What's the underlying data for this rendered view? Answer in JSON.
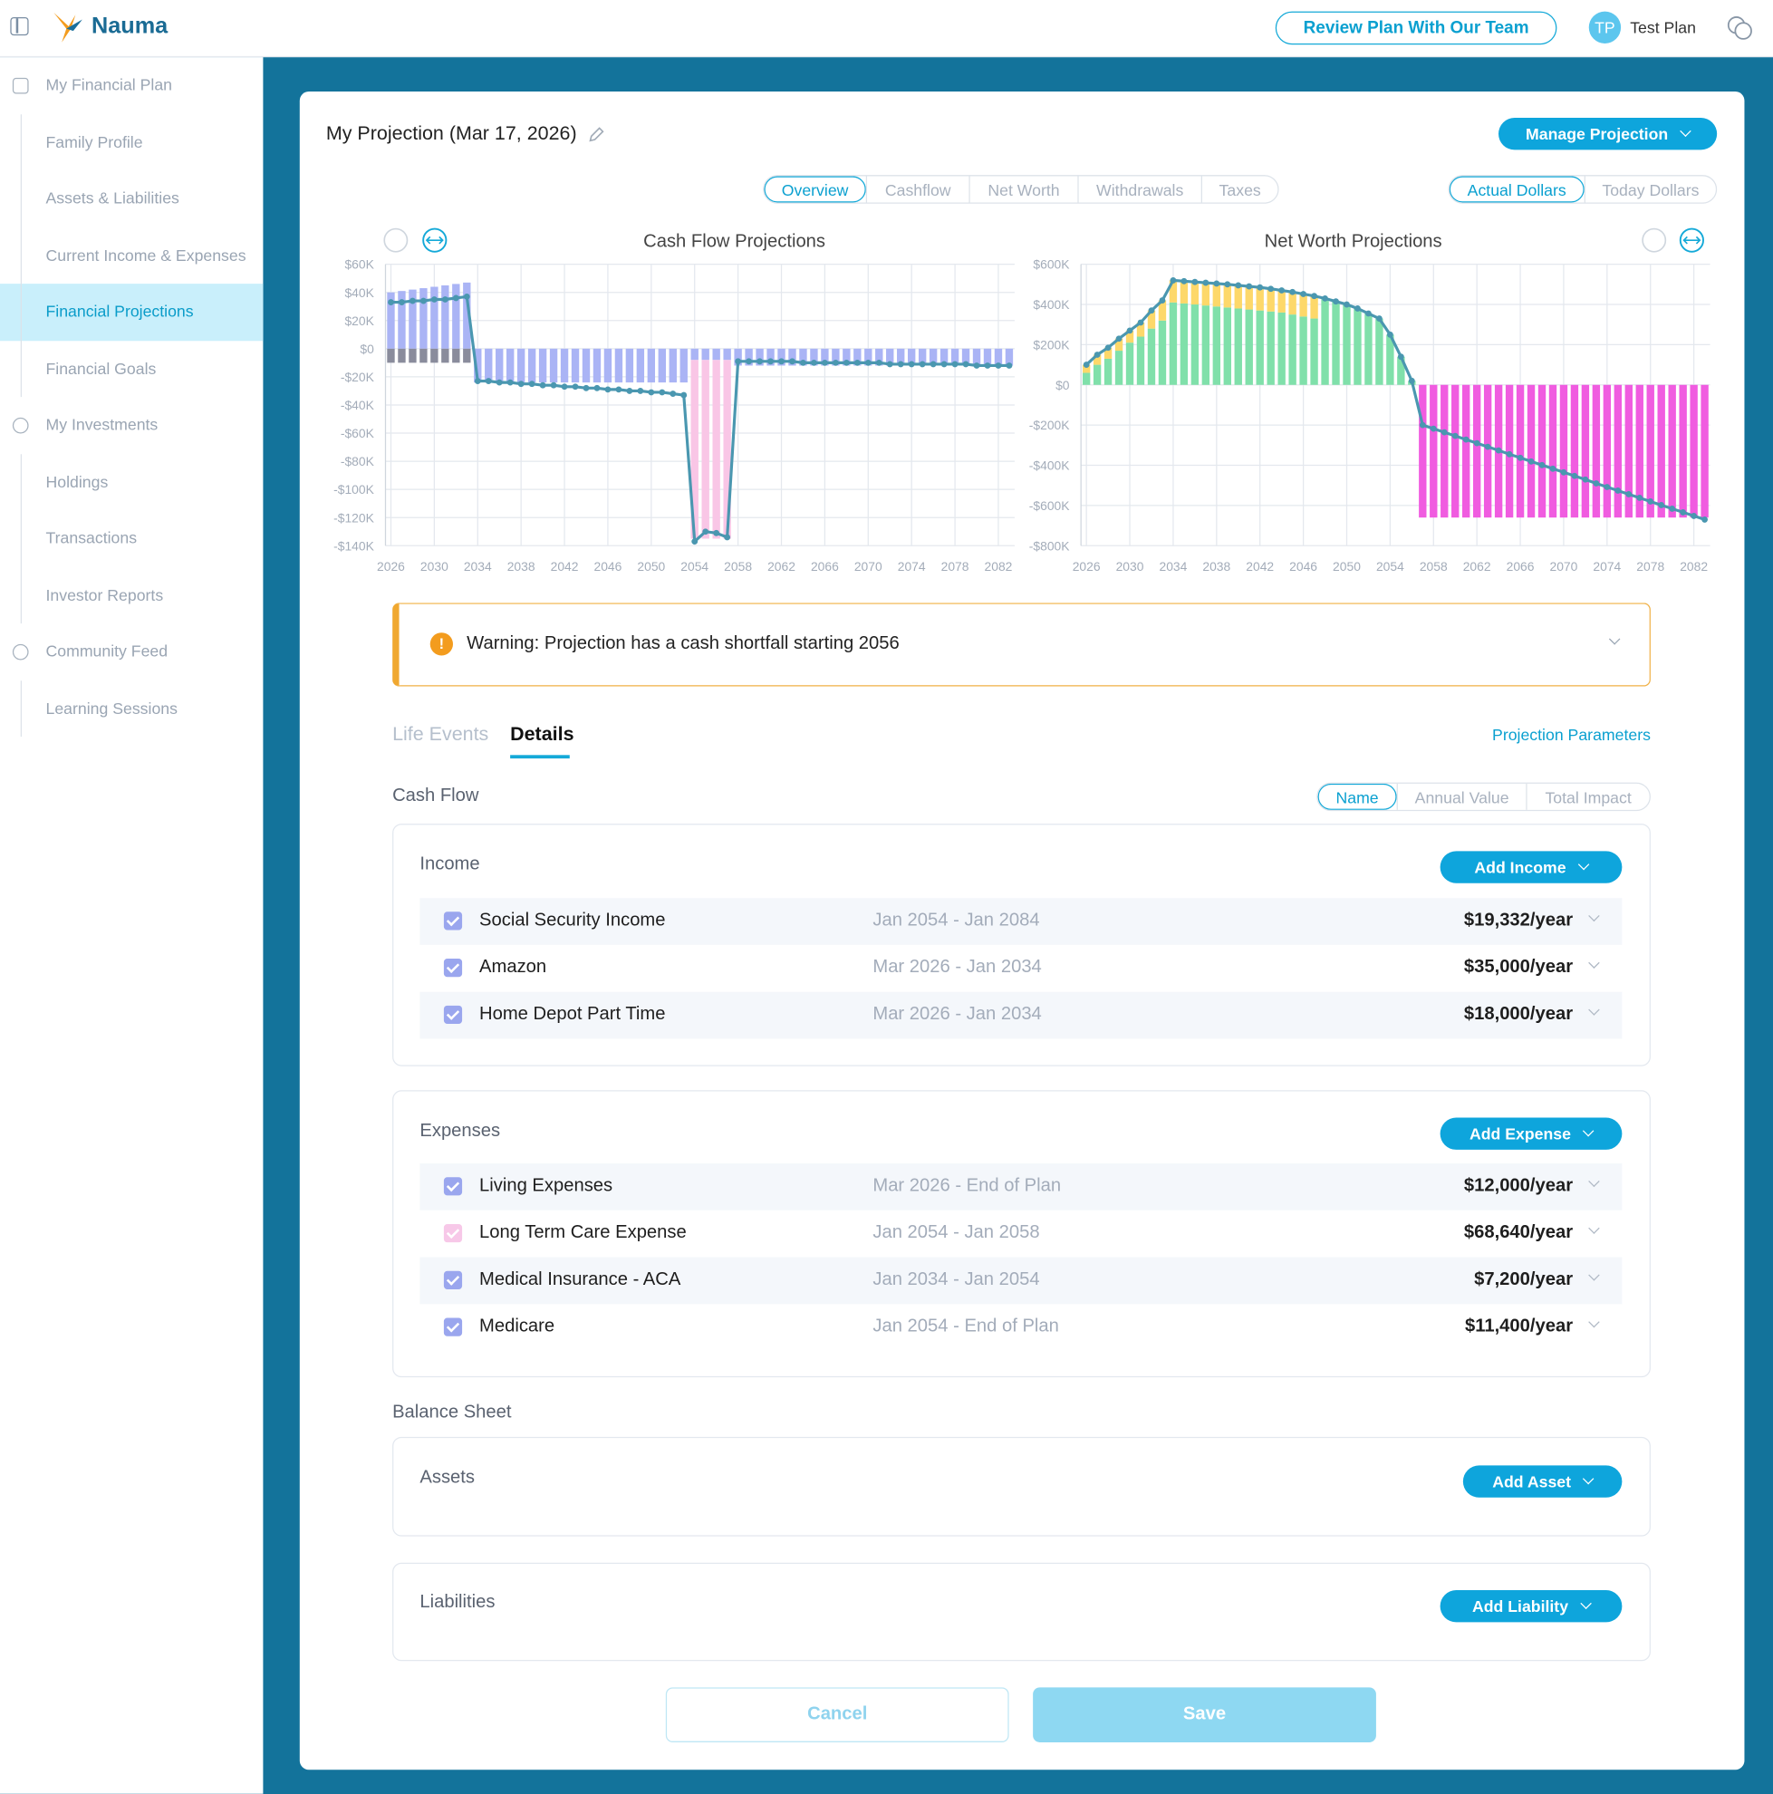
{
  "header": {
    "logo": "Nauma",
    "review_button": "Review Plan With Our Team",
    "avatar": "TP",
    "user": "Test Plan"
  },
  "sidebar": [
    {
      "label": "My Financial Plan",
      "items": [
        "Family Profile",
        "Assets & Liabilities",
        "Current Income & Expenses",
        "Financial Projections",
        "Financial Goals"
      ]
    },
    {
      "label": "My Investments",
      "items": [
        "Holdings",
        "Transactions",
        "Investor Reports"
      ]
    },
    {
      "label": "Community Feed",
      "items": [
        "Learning Sessions"
      ]
    }
  ],
  "projection": {
    "title": "My Projection (Mar 17, 2026)",
    "manage_button": "Manage Projection",
    "views": [
      "Overview",
      "Cashflow",
      "Net Worth",
      "Withdrawals",
      "Taxes"
    ],
    "dollars": [
      "Actual Dollars",
      "Today Dollars"
    ]
  },
  "chart_data": [
    {
      "type": "bar",
      "title": "Cash Flow Projections",
      "stacked": true,
      "grid": true,
      "x": [
        2026,
        2027,
        2028,
        2029,
        2030,
        2031,
        2032,
        2033,
        2034,
        2035,
        2036,
        2037,
        2038,
        2039,
        2040,
        2041,
        2042,
        2043,
        2044,
        2045,
        2046,
        2047,
        2048,
        2049,
        2050,
        2051,
        2052,
        2053,
        2054,
        2055,
        2056,
        2057,
        2058,
        2059,
        2060,
        2061,
        2062,
        2063,
        2064,
        2065,
        2066,
        2067,
        2068,
        2069,
        2070,
        2071,
        2072,
        2073,
        2074,
        2075,
        2076,
        2077,
        2078,
        2079,
        2080,
        2081,
        2082,
        2083
      ],
      "xlim": [
        2025.5,
        2083.5
      ],
      "xticks": [
        2026,
        2030,
        2034,
        2038,
        2042,
        2046,
        2050,
        2054,
        2058,
        2062,
        2066,
        2070,
        2074,
        2078,
        2082
      ],
      "ylim": [
        -140,
        60
      ],
      "yticks": [
        {
          "value": 60,
          "label": "$60K"
        },
        {
          "value": 40,
          "label": "$40K"
        },
        {
          "value": 20,
          "label": "$20K"
        },
        {
          "value": 0,
          "label": "$0"
        },
        {
          "value": -20,
          "label": "-$20K"
        },
        {
          "value": -40,
          "label": "-$40K"
        },
        {
          "value": -60,
          "label": "-$60K"
        },
        {
          "value": -80,
          "label": "-$80K"
        },
        {
          "value": -100,
          "label": "-$100K"
        },
        {
          "value": -120,
          "label": "-$120K"
        },
        {
          "value": -140,
          "label": "-$140K"
        }
      ],
      "series": [
        {
          "color": "#aab4f5",
          "values": [
            40,
            41,
            42,
            43,
            44,
            45,
            46,
            47,
            -24,
            -24,
            -24,
            -24,
            -24,
            -24,
            -24,
            -24,
            -24,
            -24,
            -24,
            -24,
            -24,
            -24,
            -24,
            -24,
            -24,
            -24,
            -24,
            -24,
            -8,
            -8,
            -8,
            -8,
            -12,
            -12,
            -12,
            -12,
            -12,
            -12,
            -12,
            -12,
            -12,
            -12,
            -12,
            -12,
            -12,
            -12,
            -12,
            -12,
            -12,
            -12,
            -12,
            -12,
            -12,
            -12,
            -12,
            -12,
            -12,
            -12
          ]
        },
        {
          "color": "#8a8c9c",
          "values": [
            -10,
            -10,
            -10,
            -10,
            -10,
            -10,
            -10,
            -10,
            null,
            null,
            null,
            null,
            null,
            null,
            null,
            null,
            null,
            null,
            null,
            null,
            null,
            null,
            null,
            null,
            null,
            null,
            null,
            null,
            null,
            null,
            null,
            null,
            null,
            null,
            null,
            null,
            null,
            null,
            null,
            null,
            null,
            null,
            null,
            null,
            null,
            null,
            null,
            null,
            null,
            null,
            null,
            null,
            null,
            null,
            null,
            null,
            null,
            null
          ]
        },
        {
          "color": "#f9c6e6",
          "values": [
            null,
            null,
            null,
            null,
            null,
            null,
            null,
            null,
            null,
            null,
            null,
            null,
            null,
            null,
            null,
            null,
            null,
            null,
            null,
            null,
            null,
            null,
            null,
            null,
            null,
            null,
            null,
            null,
            -127,
            -127,
            -127,
            -127,
            null,
            null,
            null,
            null,
            null,
            null,
            null,
            null,
            null,
            null,
            null,
            null,
            null,
            null,
            null,
            null,
            null,
            null,
            null,
            null,
            null,
            null,
            null,
            null,
            null,
            null
          ]
        },
        {
          "type": "line",
          "color": "#4a97b0",
          "values": [
            33,
            33,
            34,
            34,
            35,
            35,
            36,
            37,
            -23,
            -23,
            -24,
            -24,
            -25,
            -25,
            -26,
            -26,
            -27,
            -27,
            -28,
            -28,
            -29,
            -29,
            -30,
            -30,
            -31,
            -31,
            -32,
            -33,
            -137,
            -130,
            -131,
            -134,
            -9,
            -9,
            -9,
            -9,
            -9,
            -9,
            -10,
            -10,
            -10,
            -10,
            -10,
            -10,
            -10,
            -10,
            -11,
            -11,
            -11,
            -11,
            -11,
            -11,
            -11,
            -11,
            -12,
            -12,
            -12,
            -12
          ]
        }
      ]
    },
    {
      "type": "bar",
      "title": "Net Worth Projections",
      "stacked": true,
      "grid": true,
      "x": [
        2026,
        2027,
        2028,
        2029,
        2030,
        2031,
        2032,
        2033,
        2034,
        2035,
        2036,
        2037,
        2038,
        2039,
        2040,
        2041,
        2042,
        2043,
        2044,
        2045,
        2046,
        2047,
        2048,
        2049,
        2050,
        2051,
        2052,
        2053,
        2054,
        2055,
        2056,
        2057,
        2058,
        2059,
        2060,
        2061,
        2062,
        2063,
        2064,
        2065,
        2066,
        2067,
        2068,
        2069,
        2070,
        2071,
        2072,
        2073,
        2074,
        2075,
        2076,
        2077,
        2078,
        2079,
        2080,
        2081,
        2082,
        2083
      ],
      "xlim": [
        2025.5,
        2083.5
      ],
      "xticks": [
        2026,
        2030,
        2034,
        2038,
        2042,
        2046,
        2050,
        2054,
        2058,
        2062,
        2066,
        2070,
        2074,
        2078,
        2082
      ],
      "ylim": [
        -800,
        600
      ],
      "yticks": [
        {
          "value": 600,
          "label": "$600K"
        },
        {
          "value": 400,
          "label": "$400K"
        },
        {
          "value": 200,
          "label": "$200K"
        },
        {
          "value": 0,
          "label": "$0"
        },
        {
          "value": -200,
          "label": "-$200K"
        },
        {
          "value": -400,
          "label": "-$400K"
        },
        {
          "value": -600,
          "label": "-$600K"
        },
        {
          "value": -800,
          "label": "-$800K"
        }
      ],
      "series": [
        {
          "color": "#80e0aa",
          "values": [
            60,
            100,
            130,
            170,
            210,
            240,
            280,
            320,
            410,
            405,
            400,
            395,
            390,
            385,
            380,
            375,
            370,
            365,
            360,
            350,
            340,
            330,
            430,
            415,
            400,
            380,
            355,
            330,
            250,
            140,
            20,
            null,
            null,
            null,
            null,
            null,
            null,
            null,
            null,
            null,
            null,
            null,
            null,
            null,
            null,
            null,
            null,
            null,
            null,
            null,
            null,
            null,
            null,
            null,
            null,
            null,
            null,
            null
          ]
        },
        {
          "color": "#fdd86a",
          "values": [
            40,
            50,
            55,
            60,
            60,
            70,
            90,
            100,
            110,
            111,
            112,
            113,
            114,
            115,
            115,
            115,
            115,
            113,
            110,
            112,
            112,
            112,
            null,
            null,
            null,
            null,
            null,
            null,
            null,
            null,
            null,
            null,
            null,
            null,
            null,
            null,
            null,
            null,
            null,
            null,
            null,
            null,
            null,
            null,
            null,
            null,
            null,
            null,
            null,
            null,
            null,
            null,
            null,
            null,
            null,
            null,
            null,
            null
          ]
        },
        {
          "color": "#f05ce0",
          "values": [
            null,
            null,
            null,
            null,
            null,
            null,
            null,
            null,
            null,
            null,
            null,
            null,
            null,
            null,
            null,
            null,
            null,
            null,
            null,
            null,
            null,
            null,
            null,
            null,
            null,
            null,
            null,
            null,
            null,
            null,
            null,
            -660,
            -660,
            -660,
            -660,
            -660,
            -660,
            -660,
            -660,
            -660,
            -660,
            -660,
            -660,
            -660,
            -660,
            -660,
            -660,
            -660,
            -660,
            -660,
            -660,
            -660,
            -660,
            -660,
            -660,
            -660,
            -660,
            -660
          ]
        },
        {
          "type": "line",
          "color": "#4a97b0",
          "values": [
            100,
            150,
            185,
            230,
            270,
            310,
            370,
            420,
            520,
            516,
            512,
            508,
            504,
            500,
            495,
            490,
            485,
            478,
            470,
            462,
            452,
            442,
            430,
            415,
            400,
            380,
            355,
            330,
            250,
            140,
            20,
            -200,
            -218,
            -236,
            -254,
            -272,
            -290,
            -308,
            -326,
            -345,
            -363,
            -381,
            -399,
            -417,
            -435,
            -453,
            -471,
            -490,
            -508,
            -526,
            -544,
            -562,
            -580,
            -598,
            -616,
            -634,
            -652,
            -670
          ]
        }
      ]
    }
  ],
  "warning": "Warning: Projection has a cash shortfall starting 2056",
  "tabs": [
    "Life Events",
    "Details"
  ],
  "projection_parameters": "Projection Parameters",
  "cash_flow": {
    "title": "Cash Flow",
    "sort": [
      "Name",
      "Annual Value",
      "Total Impact"
    ],
    "income": {
      "title": "Income",
      "button": "Add Income",
      "rows": [
        {
          "name": "Social Security Income",
          "dates": "Jan 2054 - Jan 2084",
          "amount": "$19,332/year",
          "color": "#9aa6ee"
        },
        {
          "name": "Amazon",
          "dates": "Mar 2026 - Jan 2034",
          "amount": "$35,000/year",
          "color": "#9aa6ee"
        },
        {
          "name": "Home Depot Part Time",
          "dates": "Mar 2026 - Jan 2034",
          "amount": "$18,000/year",
          "color": "#9aa6ee"
        }
      ]
    },
    "expenses": {
      "title": "Expenses",
      "button": "Add Expense",
      "rows": [
        {
          "name": "Living Expenses",
          "dates": "Mar 2026 - End of Plan",
          "amount": "$12,000/year",
          "color": "#9aa6ee"
        },
        {
          "name": "Long Term Care Expense",
          "dates": "Jan 2054 - Jan 2058",
          "amount": "$68,640/year",
          "color": "#f7c8e8"
        },
        {
          "name": "Medical Insurance - ACA",
          "dates": "Jan 2034 - Jan 2054",
          "amount": "$7,200/year",
          "color": "#9aa6ee"
        },
        {
          "name": "Medicare",
          "dates": "Jan 2054 - End of Plan",
          "amount": "$11,400/year",
          "color": "#9aa6ee"
        }
      ]
    }
  },
  "balance_sheet": {
    "title": "Balance Sheet",
    "assets": {
      "title": "Assets",
      "button": "Add Asset"
    },
    "liabilities": {
      "title": "Liabilities",
      "button": "Add Liability"
    }
  },
  "buttons": {
    "cancel": "Cancel",
    "save": "Save"
  }
}
